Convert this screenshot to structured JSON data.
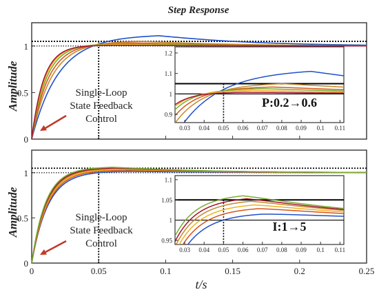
{
  "figure": {
    "title": "Step Response",
    "xlabel": "t/s",
    "ylabel": "Amplitude",
    "series_colors": [
      "#1f4fc9",
      "#d95319",
      "#edb120",
      "#7e2f8e",
      "#77ac30",
      "#a2142f",
      "#c28a2a"
    ]
  },
  "chart_data": [
    {
      "type": "line",
      "panel": "top",
      "ylabel": "Amplitude",
      "xlim": [
        0,
        0.25
      ],
      "ylim": [
        0,
        1.25
      ],
      "xticks": [
        "0",
        "0.05",
        "0.1",
        "0.15",
        "0.2",
        "0.25"
      ],
      "yticks": [
        "0",
        "0.5",
        "1"
      ],
      "xtick_values": [
        0,
        0.05,
        0.1,
        0.15,
        0.2,
        0.25
      ],
      "ytick_values": [
        0,
        0.5,
        1
      ],
      "reference_lines": {
        "y_upper": 1.05,
        "y_lower": 1.0,
        "x": 0.05
      },
      "annotation": [
        "Single-Loop",
        "State Feedback",
        "Control"
      ],
      "series_params": [
        {
          "tau": 0.018,
          "overshoot": 0.13,
          "peak_t": 0.095,
          "decay": 0.06,
          "color": "#1f4fc9"
        },
        {
          "tau": 0.014,
          "overshoot": 0.06,
          "peak_t": 0.08,
          "decay": 0.06,
          "color": "#c28a2a"
        },
        {
          "tau": 0.012,
          "overshoot": 0.04,
          "peak_t": 0.075,
          "decay": 0.06,
          "color": "#d95319"
        },
        {
          "tau": 0.0105,
          "overshoot": 0.03,
          "peak_t": 0.07,
          "decay": 0.06,
          "color": "#77ac30"
        },
        {
          "tau": 0.0095,
          "overshoot": 0.02,
          "peak_t": 0.065,
          "decay": 0.06,
          "color": "#edb120"
        },
        {
          "tau": 0.0088,
          "overshoot": 0.01,
          "peak_t": 0.06,
          "decay": 0.06,
          "color": "#a2142f"
        }
      ],
      "inset": {
        "xlim": [
          0.025,
          0.112
        ],
        "ylim": [
          0.86,
          1.23
        ],
        "xticks": [
          "0.03",
          "0.04",
          "0.05",
          "0.06",
          "0.07",
          "0.08",
          "0.09",
          "0.1",
          "0.11"
        ],
        "yticks": [
          "0.9",
          "1",
          "1.1",
          "1.2"
        ],
        "xtick_values": [
          0.03,
          0.04,
          0.05,
          0.06,
          0.07,
          0.08,
          0.09,
          0.1,
          0.11
        ],
        "ytick_values": [
          0.9,
          1.0,
          1.1,
          1.2
        ],
        "label": "P:0.2→0.6"
      }
    },
    {
      "type": "line",
      "panel": "bottom",
      "ylabel": "Amplitude",
      "xlabel": "t/s",
      "xlim": [
        0,
        0.25
      ],
      "ylim": [
        0,
        1.25
      ],
      "xticks": [
        "0",
        "0.05",
        "0.1",
        "0.15",
        "0.2",
        "0.25"
      ],
      "yticks": [
        "0",
        "0.5",
        "1"
      ],
      "xtick_values": [
        0,
        0.05,
        0.1,
        0.15,
        0.2,
        0.25
      ],
      "ytick_values": [
        0,
        0.5,
        1
      ],
      "reference_lines": {
        "y_upper": 1.05,
        "y_lower": 1.0,
        "x": 0.05
      },
      "annotation": [
        "Single-Loop",
        "State Feedback",
        "Control"
      ],
      "series_params": [
        {
          "tau": 0.012,
          "overshoot": 0.02,
          "peak_t": 0.07,
          "decay": 0.06,
          "color": "#1f4fc9"
        },
        {
          "tau": 0.0115,
          "overshoot": 0.035,
          "peak_t": 0.068,
          "decay": 0.06,
          "color": "#d95319"
        },
        {
          "tau": 0.011,
          "overshoot": 0.045,
          "peak_t": 0.066,
          "decay": 0.06,
          "color": "#edb120"
        },
        {
          "tau": 0.0106,
          "overshoot": 0.055,
          "peak_t": 0.064,
          "decay": 0.06,
          "color": "#c28a2a"
        },
        {
          "tau": 0.0102,
          "overshoot": 0.062,
          "peak_t": 0.062,
          "decay": 0.06,
          "color": "#a2142f"
        },
        {
          "tau": 0.0098,
          "overshoot": 0.07,
          "peak_t": 0.06,
          "decay": 0.06,
          "color": "#77ac30"
        }
      ],
      "inset": {
        "xlim": [
          0.025,
          0.112
        ],
        "ylim": [
          0.94,
          1.11
        ],
        "xticks": [
          "0.03",
          "0.04",
          "0.05",
          "0.06",
          "0.07",
          "0.08",
          "0.09",
          "0.1",
          "0.11"
        ],
        "yticks": [
          "0.95",
          "1",
          "1.05",
          "1.1"
        ],
        "xtick_values": [
          0.03,
          0.04,
          0.05,
          0.06,
          0.07,
          0.08,
          0.09,
          0.1,
          0.11
        ],
        "ytick_values": [
          0.95,
          1.0,
          1.05,
          1.1
        ],
        "label": "I:1→5"
      }
    }
  ]
}
